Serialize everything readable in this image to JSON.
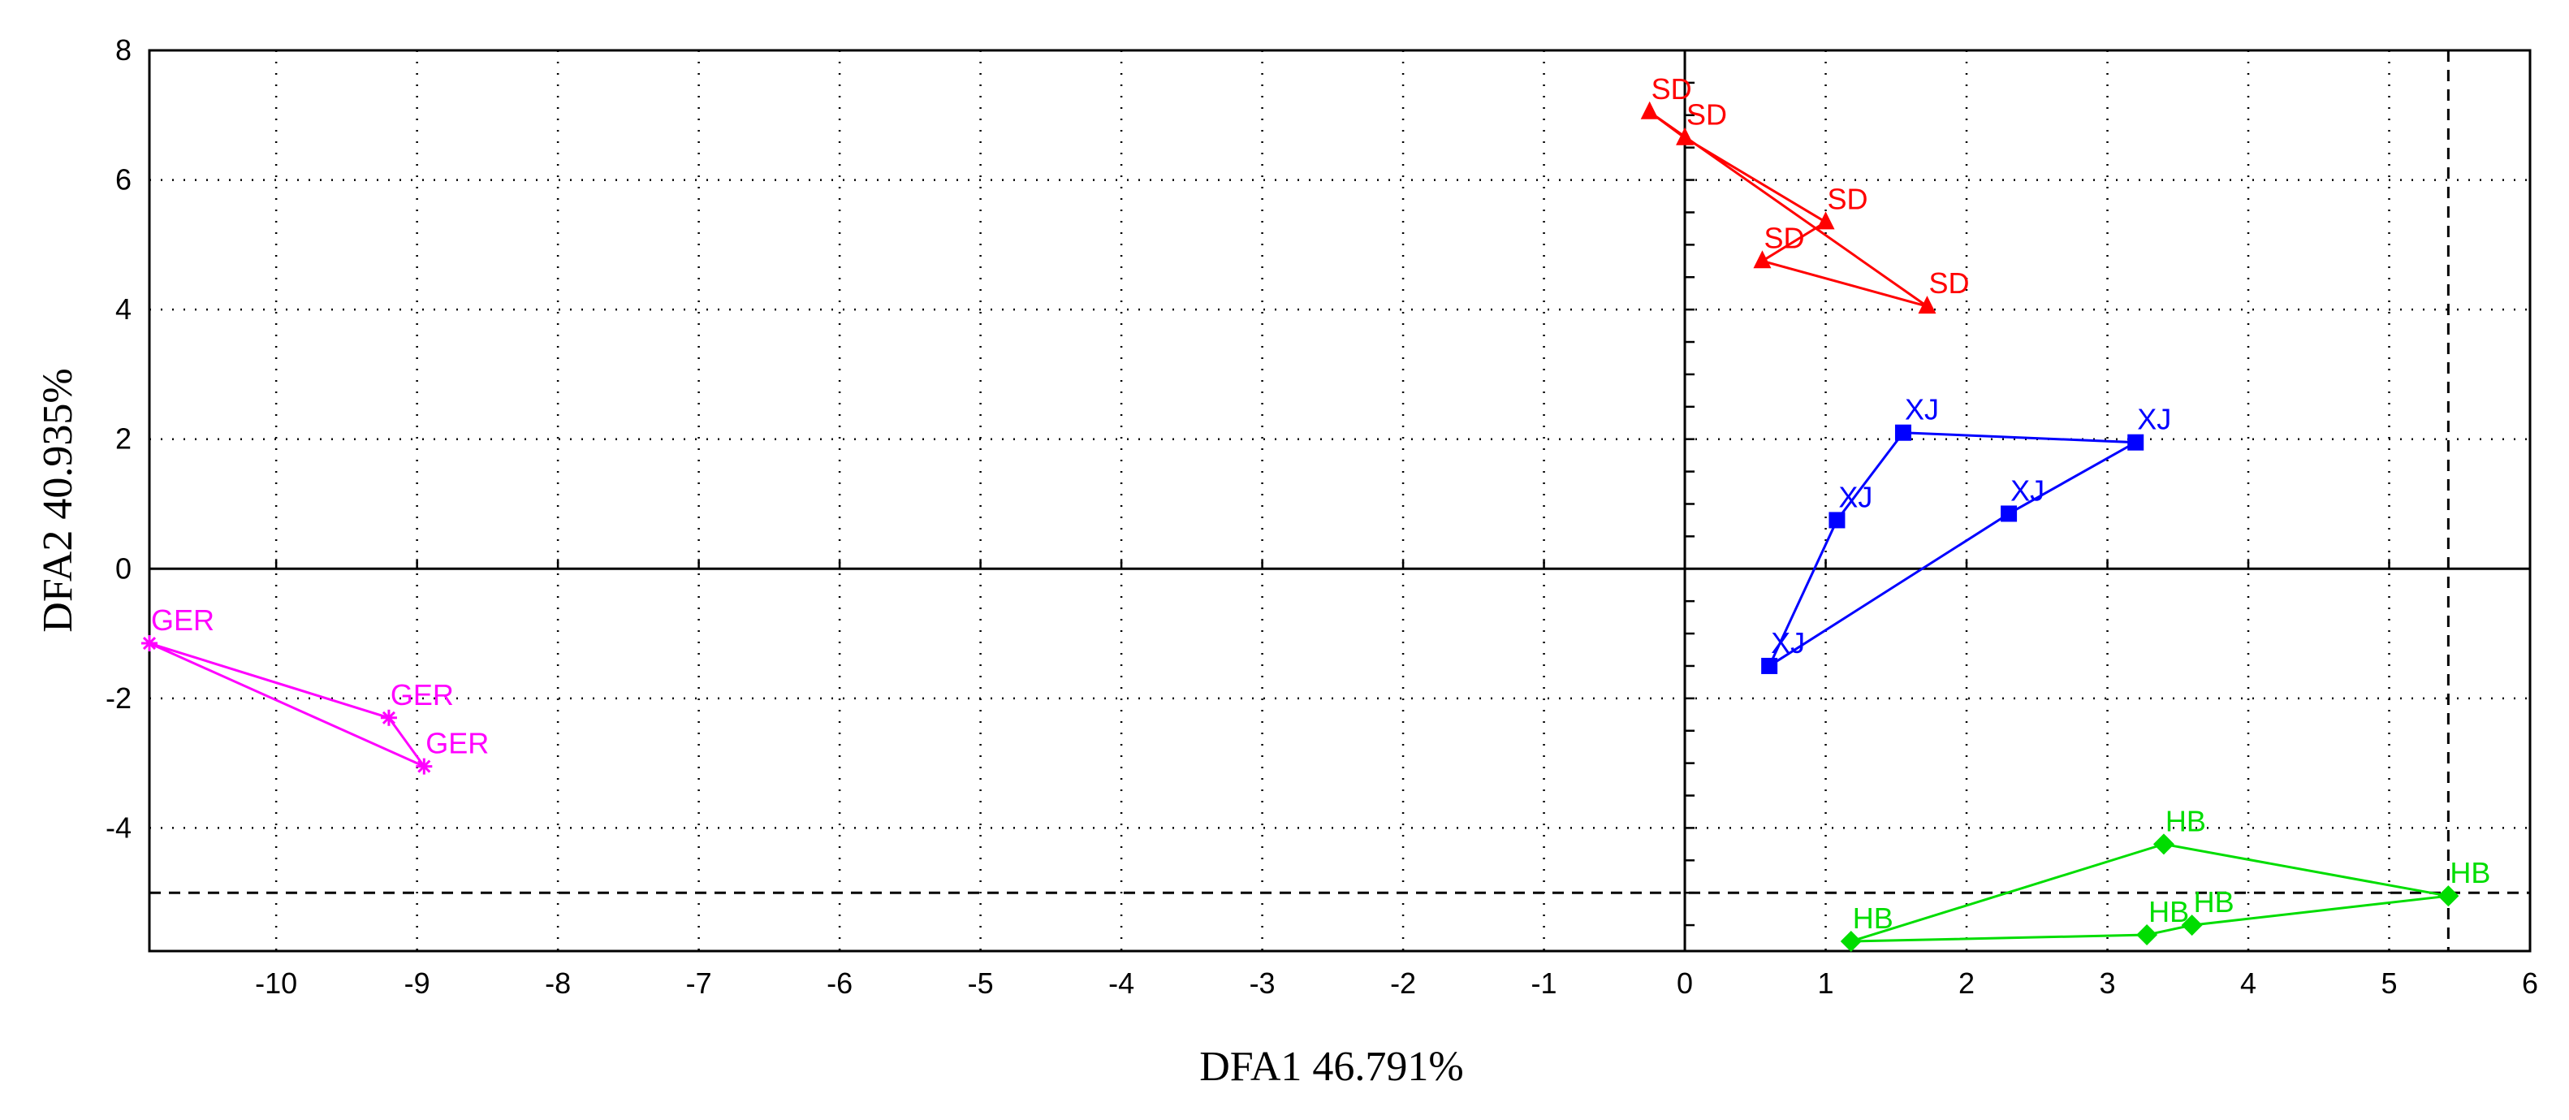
{
  "chart_data": {
    "type": "scatter",
    "xlabel": "DFA1 46.791%",
    "ylabel": "DFA2 40.935%",
    "xlim": [
      -10.9,
      6
    ],
    "ylim": [
      -5.9,
      8
    ],
    "x_ticks": [
      -10,
      -9,
      -8,
      -7,
      -6,
      -5,
      -4,
      -3,
      -2,
      -1,
      0,
      1,
      2,
      3,
      4,
      5,
      6
    ],
    "y_ticks": [
      -4,
      -2,
      0,
      2,
      4,
      6,
      8
    ],
    "grid": true,
    "grid_style": "dotted",
    "reference_lines": {
      "x": 5.42,
      "y": -5.0,
      "style": "dashed"
    },
    "zero_axes": true,
    "series": [
      {
        "group": "SD",
        "color": "#ff0000",
        "marker": "triangle",
        "points": [
          {
            "x": -0.25,
            "y": 7.05,
            "label": "SD"
          },
          {
            "x": 0.0,
            "y": 6.65,
            "label": "SD"
          },
          {
            "x": 1.0,
            "y": 5.35,
            "label": "SD"
          },
          {
            "x": 0.55,
            "y": 4.75,
            "label": "SD"
          },
          {
            "x": 1.72,
            "y": 4.05,
            "label": "SD"
          }
        ],
        "hull": [
          [
            -0.25,
            7.05
          ],
          [
            1.72,
            4.05
          ],
          [
            0.55,
            4.75
          ],
          [
            1.0,
            5.35
          ],
          [
            0.0,
            6.65
          ],
          [
            -0.25,
            7.05
          ]
        ]
      },
      {
        "group": "XJ",
        "color": "#0000ff",
        "marker": "square",
        "points": [
          {
            "x": 1.55,
            "y": 2.1,
            "label": "XJ"
          },
          {
            "x": 3.2,
            "y": 1.95,
            "label": "XJ"
          },
          {
            "x": 1.08,
            "y": 0.75,
            "label": "XJ"
          },
          {
            "x": 2.3,
            "y": 0.85,
            "label": "XJ"
          },
          {
            "x": 0.6,
            "y": -1.5,
            "label": "XJ"
          }
        ],
        "hull": [
          [
            1.55,
            2.1
          ],
          [
            3.2,
            1.95
          ],
          [
            2.3,
            0.85
          ],
          [
            0.6,
            -1.5
          ],
          [
            1.08,
            0.75
          ],
          [
            1.55,
            2.1
          ]
        ]
      },
      {
        "group": "GER",
        "color": "#ff00ff",
        "marker": "star",
        "points": [
          {
            "x": -10.9,
            "y": -1.15,
            "label": "GER"
          },
          {
            "x": -9.2,
            "y": -2.3,
            "label": "GER"
          },
          {
            "x": -8.95,
            "y": -3.05,
            "label": "GER"
          }
        ],
        "hull": [
          [
            -10.9,
            -1.15
          ],
          [
            -9.2,
            -2.3
          ],
          [
            -8.95,
            -3.05
          ],
          [
            -10.9,
            -1.15
          ]
        ]
      },
      {
        "group": "HB",
        "color": "#00dd00",
        "marker": "diamond",
        "points": [
          {
            "x": 3.4,
            "y": -4.25,
            "label": "HB"
          },
          {
            "x": 5.42,
            "y": -5.05,
            "label": "HB"
          },
          {
            "x": 3.6,
            "y": -5.5,
            "label": "HB"
          },
          {
            "x": 3.28,
            "y": -5.65,
            "label": "HB"
          },
          {
            "x": 1.18,
            "y": -5.75,
            "label": "HB"
          }
        ],
        "hull": [
          [
            1.18,
            -5.75
          ],
          [
            3.4,
            -4.25
          ],
          [
            5.42,
            -5.05
          ],
          [
            3.6,
            -5.5
          ],
          [
            3.28,
            -5.65
          ],
          [
            1.18,
            -5.75
          ]
        ]
      }
    ]
  }
}
